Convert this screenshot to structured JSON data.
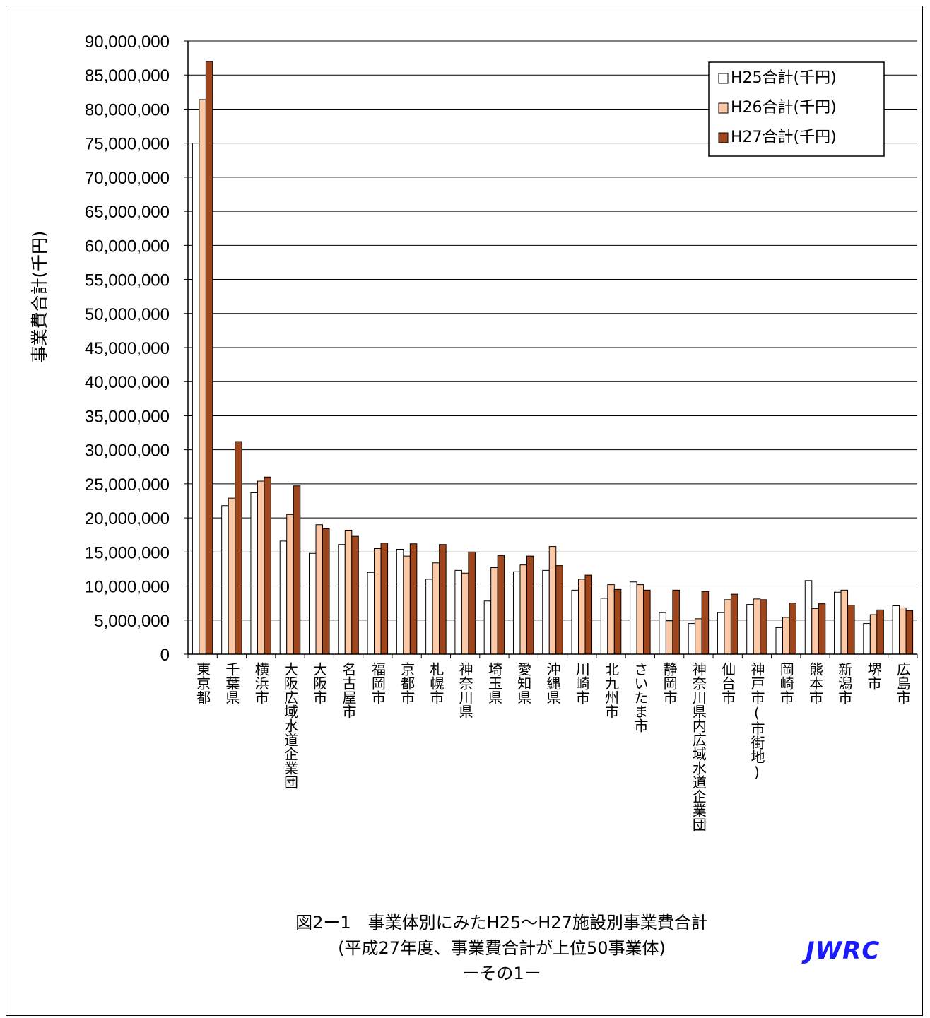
{
  "chart_data": {
    "type": "bar",
    "ylabel": "事業費合計(千円)",
    "ylim": [
      0,
      90000000
    ],
    "ytick_step": 5000000,
    "ytick_labels": [
      "0",
      "5,000,000",
      "10,000,000",
      "15,000,000",
      "20,000,000",
      "25,000,000",
      "30,000,000",
      "35,000,000",
      "40,000,000",
      "45,000,000",
      "50,000,000",
      "55,000,000",
      "60,000,000",
      "65,000,000",
      "70,000,000",
      "75,000,000",
      "80,000,000",
      "85,000,000",
      "90,000,000"
    ],
    "grid": true,
    "legend_position": "top-right",
    "categories": [
      "東京都",
      "千葉県",
      "横浜市",
      "大阪広域水道企業団",
      "大阪市",
      "名古屋市",
      "福岡市",
      "京都市",
      "札幌市",
      "神奈川県",
      "埼玉県",
      "愛知県",
      "沖縄県",
      "川崎市",
      "北九州市",
      "さいたま市",
      "静岡市",
      "神奈川県内広域水道企業団",
      "仙台市",
      "神戸市(市街地)",
      "岡崎市",
      "熊本市",
      "新潟市",
      "堺市",
      "広島市"
    ],
    "series": [
      {
        "name": "H25合計(千円)",
        "color": "#ffffff",
        "values": [
          75000000,
          21800000,
          23700000,
          16600000,
          14800000,
          16100000,
          12000000,
          15400000,
          11000000,
          12300000,
          7800000,
          12100000,
          12300000,
          9400000,
          8200000,
          10600000,
          6100000,
          4500000,
          6100000,
          7300000,
          3900000,
          10800000,
          9100000,
          4500000,
          7100000
        ]
      },
      {
        "name": "H26合計(千円)",
        "color": "#fcc8a6",
        "values": [
          81400000,
          22900000,
          25400000,
          20500000,
          19000000,
          18200000,
          15500000,
          14400000,
          13400000,
          11900000,
          12700000,
          13100000,
          15800000,
          11000000,
          10200000,
          10200000,
          4900000,
          5200000,
          8000000,
          8100000,
          5400000,
          6700000,
          9400000,
          5800000,
          6800000
        ]
      },
      {
        "name": "H27合計(千円)",
        "color": "#a0461c",
        "values": [
          87000000,
          31200000,
          26000000,
          24700000,
          18400000,
          17300000,
          16300000,
          16200000,
          16100000,
          15000000,
          14500000,
          14400000,
          13000000,
          11600000,
          9500000,
          9400000,
          9400000,
          9200000,
          8800000,
          8000000,
          7500000,
          7400000,
          7200000,
          6500000,
          6400000
        ]
      }
    ]
  },
  "caption": {
    "line1": "図2ー1　事業体別にみたH25～H27施設別事業費合計",
    "line2": "(平成27年度、事業費合計が上位50事業体)",
    "line3": "ーその1ー"
  },
  "logo_text": "JWRC"
}
